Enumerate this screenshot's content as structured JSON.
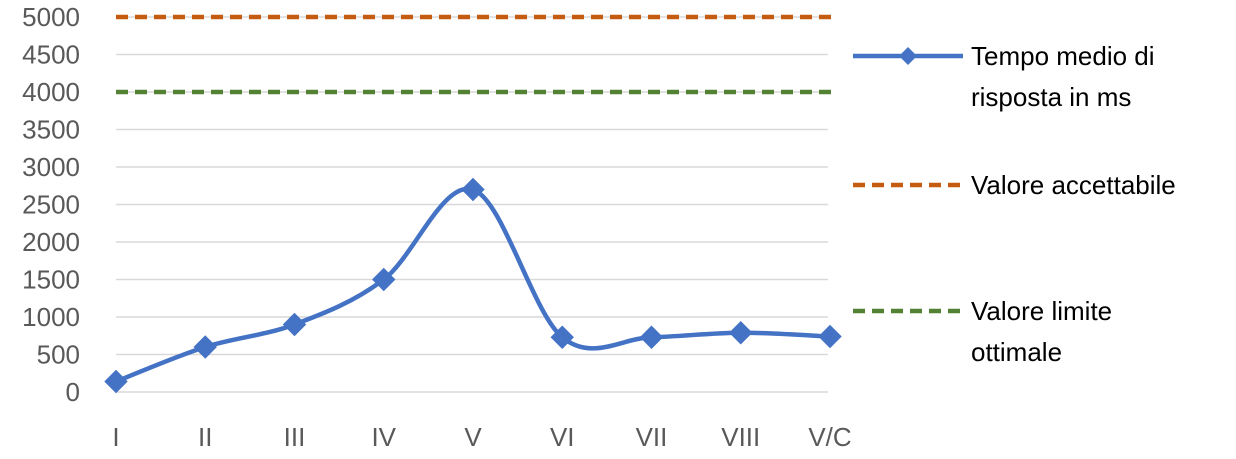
{
  "chart_data": {
    "type": "line",
    "categories": [
      "I",
      "II",
      "III",
      "IV",
      "V",
      "VI",
      "VII",
      "VIII",
      "V/C"
    ],
    "ylim": [
      0,
      5000
    ],
    "yticks": [
      0,
      500,
      1000,
      1500,
      2000,
      2500,
      3000,
      3500,
      4000,
      4500,
      5000
    ],
    "grid": true,
    "legend_position": "right",
    "series": [
      {
        "name_lines": [
          "Tempo medio di",
          "risposta in ms"
        ],
        "values": [
          140,
          600,
          900,
          1500,
          2700,
          730,
          730,
          790,
          740
        ],
        "color": "#4472C4",
        "style": "solid-smooth-diamond-markers"
      },
      {
        "name_lines": [
          "Valore accettabile"
        ],
        "values": [
          5000,
          5000,
          5000,
          5000,
          5000,
          5000,
          5000,
          5000,
          5000
        ],
        "color": "#C55A11",
        "style": "dashed"
      },
      {
        "name_lines": [
          "Valore limite",
          "ottimale"
        ],
        "values": [
          4000,
          4000,
          4000,
          4000,
          4000,
          4000,
          4000,
          4000,
          4000
        ],
        "color": "#548235",
        "style": "dashed"
      }
    ]
  }
}
